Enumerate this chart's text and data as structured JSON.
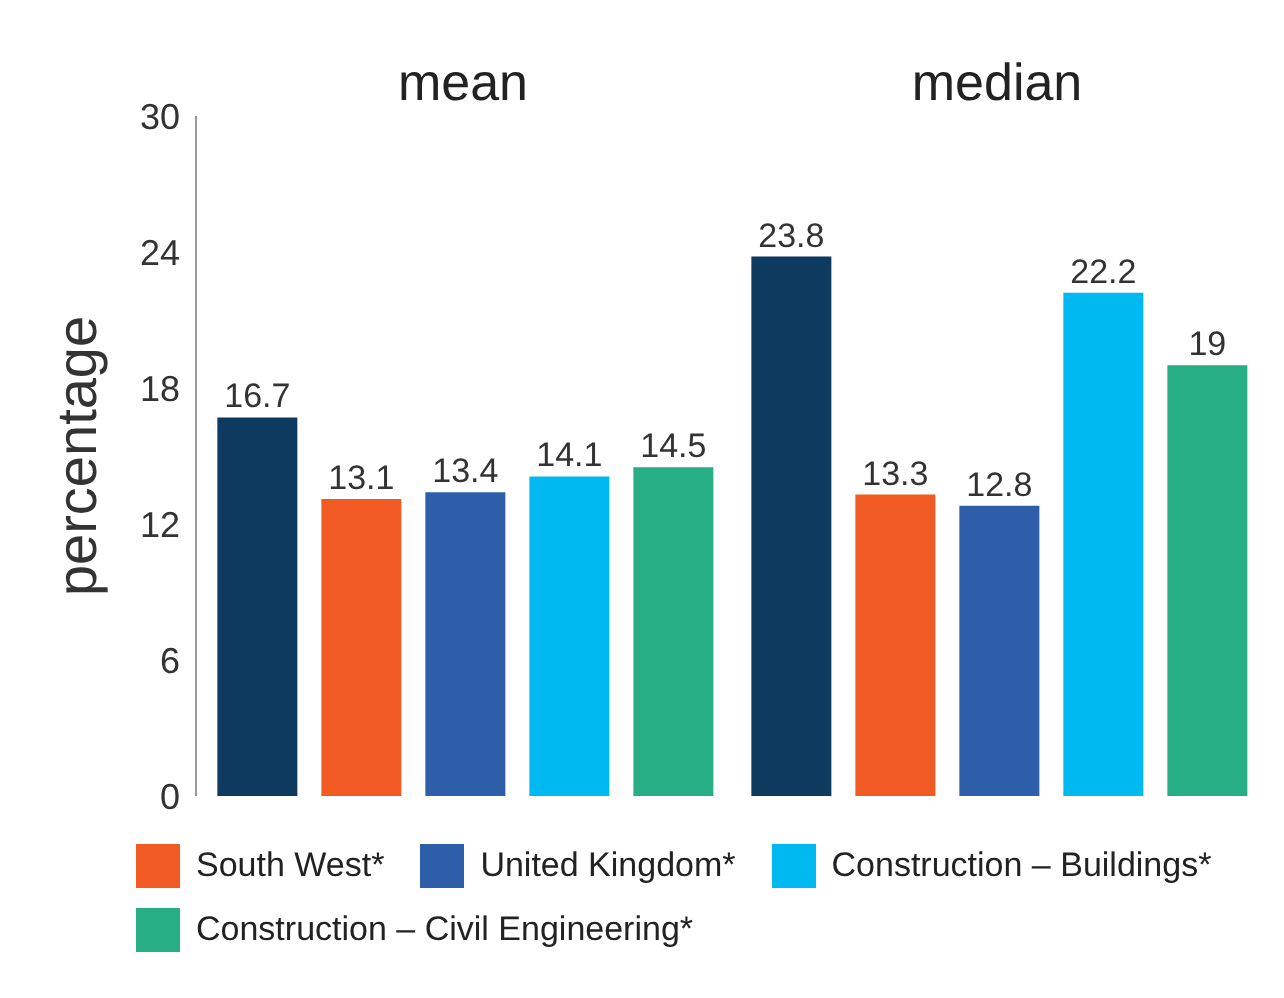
{
  "chart_data": {
    "type": "bar",
    "categories": [
      "mean",
      "median"
    ],
    "ylabel": "percentage",
    "ylim": [
      0,
      30
    ],
    "yticks": [
      0,
      6,
      12,
      18,
      24,
      30
    ],
    "data_labels": true,
    "legend": "bottom",
    "series": [
      {
        "color": "#0e3a5f",
        "values": [
          16.7,
          23.8
        ]
      },
      {
        "name": "South West*",
        "color": "#f15a22",
        "values": [
          13.1,
          13.3
        ]
      },
      {
        "name": "United Kingdom*",
        "color": "#2e5eaa",
        "values": [
          13.4,
          12.8
        ]
      },
      {
        "name": "Construction – Buildings*",
        "color": "#00b9f1",
        "values": [
          14.1,
          22.2
        ]
      },
      {
        "name": "Construction – Civil Engineering*",
        "color": "#27ae84",
        "values": [
          14.5,
          19
        ]
      }
    ]
  }
}
